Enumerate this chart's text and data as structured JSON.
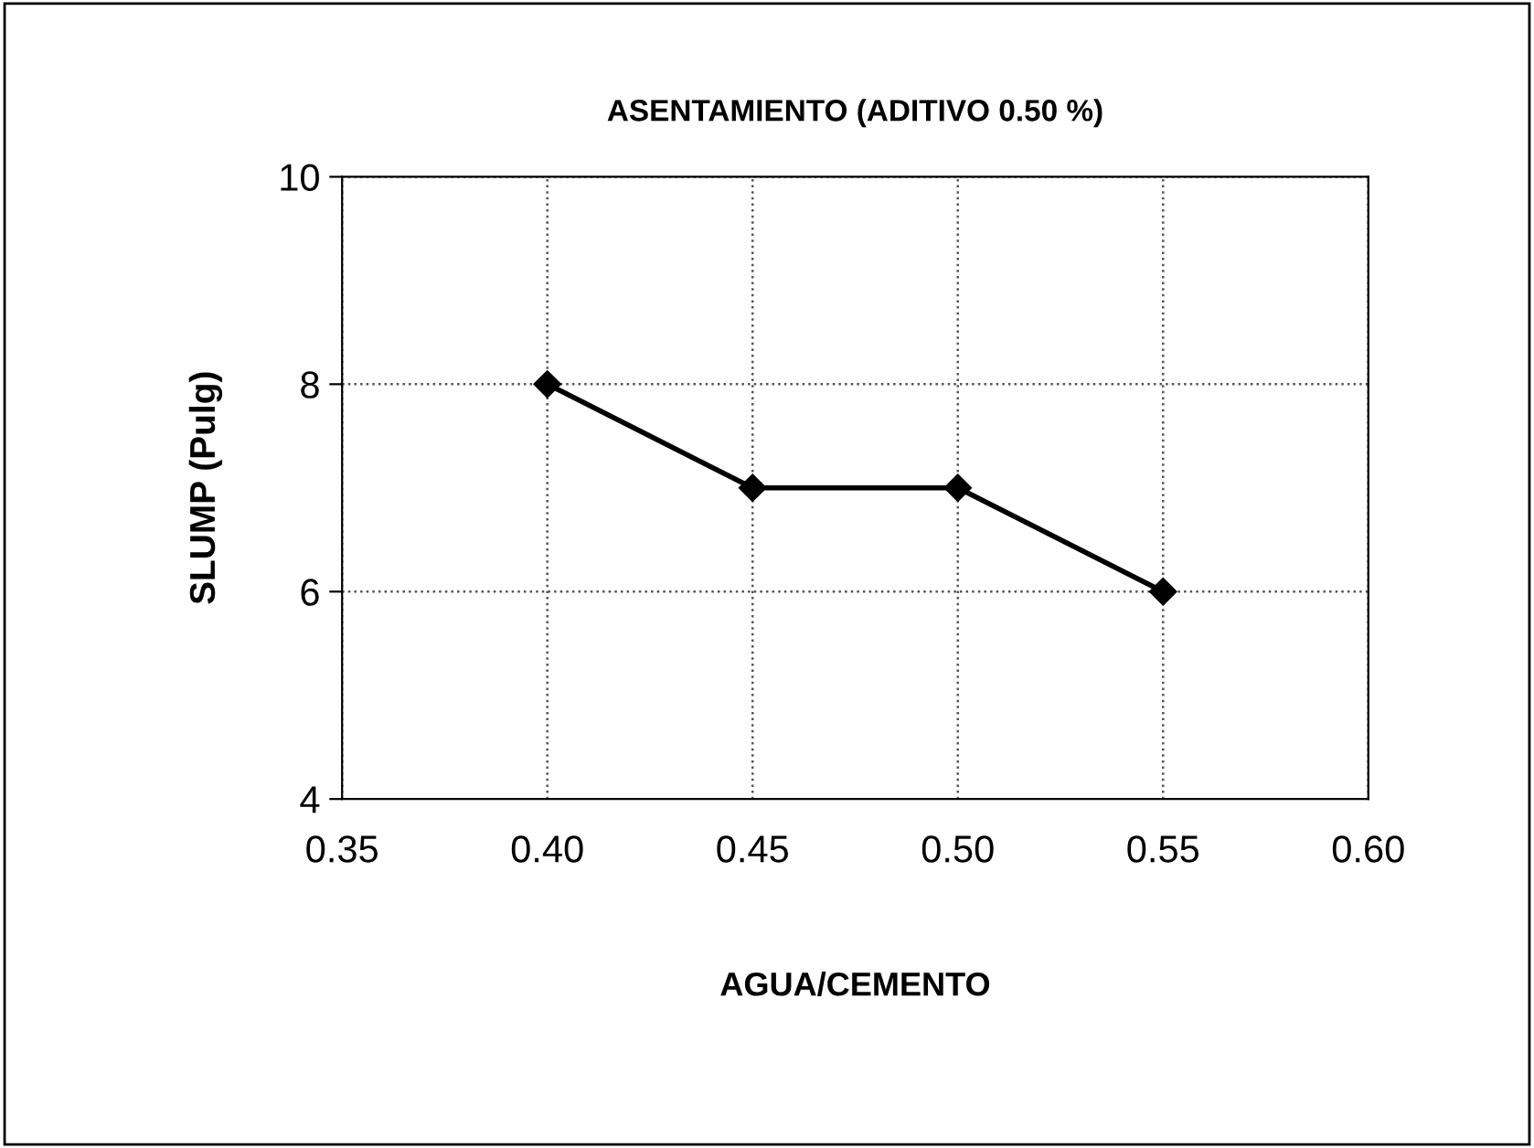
{
  "chart_data": {
    "type": "line",
    "title": "ASENTAMIENTO (ADITIVO 0.50 %)",
    "xlabel": "AGUA/CEMENTO",
    "ylabel": "SLUMP (Pulg)",
    "x": [
      0.4,
      0.45,
      0.5,
      0.55
    ],
    "series": [
      {
        "color": "#000000",
        "values": [
          8,
          7,
          7,
          6
        ]
      }
    ],
    "xlim": [
      0.35,
      0.6
    ],
    "xticks": [
      0.35,
      {
        "value": 0.4,
        "label": "0.40"
      },
      0.45,
      {
        "value": 0.5,
        "label": "0.50"
      },
      0.55,
      {
        "value": 0.6,
        "label": "0.60"
      }
    ],
    "ylim": [
      4,
      10
    ],
    "yticks": [
      4,
      6,
      8,
      10
    ],
    "grid": true,
    "marker": "diamond",
    "line_style": "solid"
  }
}
